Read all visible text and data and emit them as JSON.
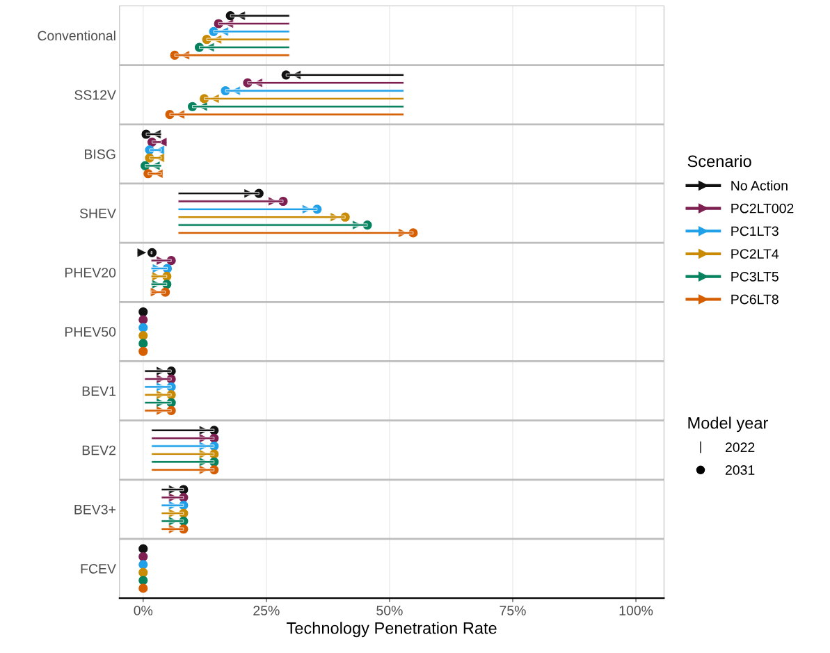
{
  "chart_data": {
    "type": "bar",
    "orientation": "horizontal",
    "xlabel": "Technology Penetration Rate",
    "legend_title": "Scenario",
    "legend": "right",
    "grid": "x",
    "categories": [
      "Conventional",
      "SS12V",
      "BISG",
      "SHEV",
      "PHEV20",
      "PHEV50",
      "BEV1",
      "BEV2",
      "BEV3+",
      "FCEV"
    ],
    "xlim": [
      -4.8,
      105.7
    ],
    "xticks": [
      {
        "value": 0,
        "label": "0%"
      },
      {
        "value": 25,
        "label": "25%"
      },
      {
        "value": 50,
        "label": "50%"
      },
      {
        "value": 75,
        "label": "75%"
      },
      {
        "value": 100,
        "label": "100%"
      }
    ],
    "series": [
      {
        "name": "No Action",
        "color": "#111111",
        "base": [
          29.7,
          52.9,
          3.7,
          7.1,
          1.6,
          null,
          0.3,
          1.7,
          3.7,
          null
        ],
        "values": [
          -12.0,
          -23.9,
          -3.1,
          16.4,
          0.2,
          0,
          5.4,
          12.7,
          4.5,
          0
        ]
      },
      {
        "name": "PC2LT002",
        "color": "#7e1f51",
        "base": [
          29.7,
          52.9,
          3.7,
          7.1,
          1.6,
          null,
          0.3,
          1.7,
          3.7,
          null
        ],
        "values": [
          -14.4,
          -31.7,
          -1.9,
          21.3,
          4.1,
          0,
          5.4,
          12.7,
          4.5,
          0
        ]
      },
      {
        "name": "PC1LT3",
        "color": "#20a0e8",
        "base": [
          29.7,
          52.9,
          3.7,
          7.1,
          1.6,
          null,
          0.3,
          1.7,
          3.7,
          null
        ],
        "values": [
          -15.4,
          -36.2,
          -2.4,
          28.2,
          3.3,
          0,
          5.4,
          12.7,
          4.5,
          0
        ]
      },
      {
        "name": "PC2LT4",
        "color": "#c98a04",
        "base": [
          29.7,
          52.9,
          3.7,
          7.1,
          1.6,
          null,
          0.3,
          1.7,
          3.7,
          null
        ],
        "values": [
          -16.8,
          -40.5,
          -2.4,
          33.9,
          3.2,
          0,
          5.4,
          12.7,
          4.5,
          0
        ]
      },
      {
        "name": "PC3LT5",
        "color": "#07825f",
        "base": [
          29.7,
          52.9,
          3.7,
          7.1,
          1.6,
          null,
          0.3,
          1.7,
          3.7,
          null
        ],
        "values": [
          -18.3,
          -42.9,
          -3.3,
          38.4,
          3.2,
          0,
          5.4,
          12.7,
          4.5,
          0
        ]
      },
      {
        "name": "PC6LT8",
        "color": "#d55e00",
        "base": [
          29.7,
          52.9,
          3.7,
          7.1,
          1.6,
          null,
          0.3,
          1.7,
          3.7,
          null
        ],
        "values": [
          -23.3,
          -47.5,
          -2.7,
          47.7,
          2.9,
          0,
          5.4,
          12.7,
          4.5,
          0
        ]
      }
    ],
    "annotations": [
      "Model year",
      "2022",
      "2031"
    ]
  }
}
